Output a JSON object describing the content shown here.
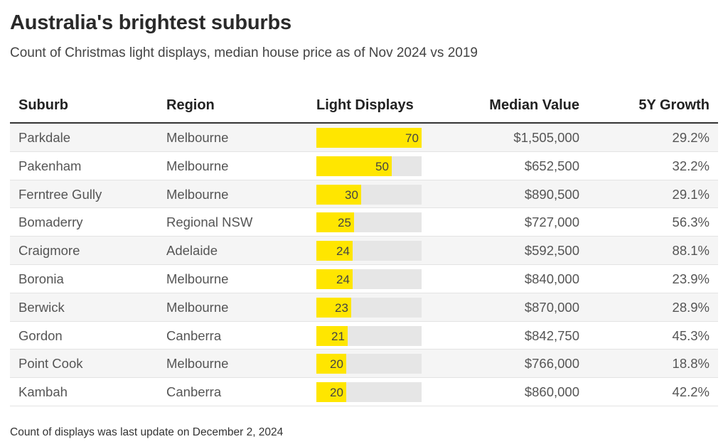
{
  "title": "Australia's brightest suburbs",
  "subtitle": "Count of Christmas light displays, median house price as of Nov 2024 vs 2019",
  "footnote": "Count of displays was last update on December 2, 2024",
  "columns": {
    "suburb": "Suburb",
    "region": "Region",
    "displays": "Light Displays",
    "value": "Median Value",
    "growth": "5Y Growth"
  },
  "colors": {
    "bar": "#ffe600",
    "track": "#e6e6e6",
    "rule": "#333333"
  },
  "chart_data": {
    "type": "table",
    "bar_column": "Light Displays",
    "bar_max": 70,
    "rows": [
      {
        "suburb": "Parkdale",
        "region": "Melbourne",
        "displays": 70,
        "value": "$1,505,000",
        "growth": "29.2%"
      },
      {
        "suburb": "Pakenham",
        "region": "Melbourne",
        "displays": 50,
        "value": "$652,500",
        "growth": "32.2%"
      },
      {
        "suburb": "Ferntree Gully",
        "region": "Melbourne",
        "displays": 30,
        "value": "$890,500",
        "growth": "29.1%"
      },
      {
        "suburb": "Bomaderry",
        "region": "Regional NSW",
        "displays": 25,
        "value": "$727,000",
        "growth": "56.3%"
      },
      {
        "suburb": "Craigmore",
        "region": "Adelaide",
        "displays": 24,
        "value": "$592,500",
        "growth": "88.1%"
      },
      {
        "suburb": "Boronia",
        "region": "Melbourne",
        "displays": 24,
        "value": "$840,000",
        "growth": "23.9%"
      },
      {
        "suburb": "Berwick",
        "region": "Melbourne",
        "displays": 23,
        "value": "$870,000",
        "growth": "28.9%"
      },
      {
        "suburb": "Gordon",
        "region": "Canberra",
        "displays": 21,
        "value": "$842,750",
        "growth": "45.3%"
      },
      {
        "suburb": "Point Cook",
        "region": "Melbourne",
        "displays": 20,
        "value": "$766,000",
        "growth": "18.8%"
      },
      {
        "suburb": "Kambah",
        "region": "Canberra",
        "displays": 20,
        "value": "$860,000",
        "growth": "42.2%"
      }
    ]
  }
}
